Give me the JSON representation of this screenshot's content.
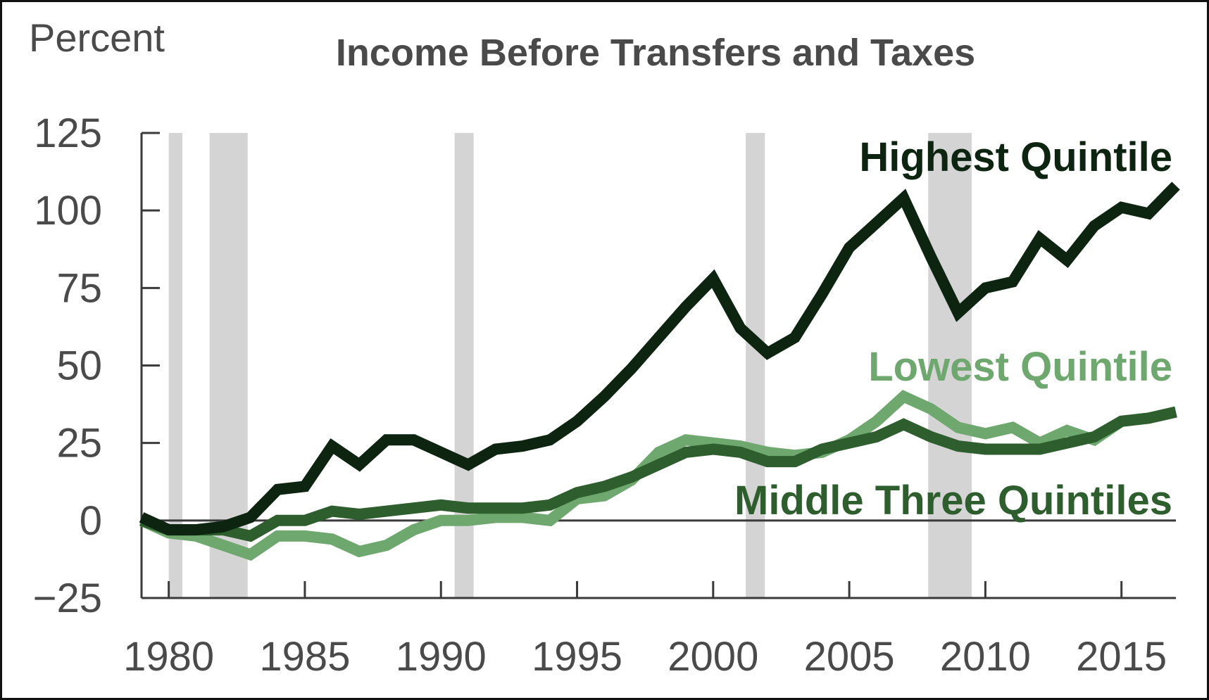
{
  "chart_data": {
    "type": "line",
    "title": "Income Before Transfers and Taxes",
    "ylabel": "Percent",
    "xlim": [
      1979,
      2017
    ],
    "ylim": [
      -25,
      125
    ],
    "yticks": [
      -25,
      0,
      25,
      50,
      75,
      100,
      125
    ],
    "yticklabels": [
      "−25",
      "0",
      "25",
      "50",
      "75",
      "100",
      "125"
    ],
    "xticks": [
      1980,
      1985,
      1990,
      1995,
      2000,
      2005,
      2010,
      2015
    ],
    "xticklabels": [
      "1980",
      "1985",
      "1990",
      "1995",
      "2000",
      "2005",
      "2010",
      "2015"
    ],
    "grid": false,
    "zero_line": true,
    "recessions": [
      [
        1980.0,
        1980.5
      ],
      [
        1981.5,
        1982.9
      ],
      [
        1990.5,
        1991.2
      ],
      [
        2001.2,
        2001.9
      ],
      [
        2007.9,
        2009.5
      ]
    ],
    "x": [
      1979,
      1980,
      1981,
      1982,
      1983,
      1984,
      1985,
      1986,
      1987,
      1988,
      1989,
      1990,
      1991,
      1992,
      1993,
      1994,
      1995,
      1996,
      1997,
      1998,
      1999,
      2000,
      2001,
      2002,
      2003,
      2004,
      2005,
      2006,
      2007,
      2008,
      2009,
      2010,
      2011,
      2012,
      2013,
      2014,
      2015,
      2016,
      2017
    ],
    "series": [
      {
        "name": "Highest Quintile",
        "color": "#0c2410",
        "values": [
          1,
          -3,
          -3,
          -2,
          1,
          10,
          11,
          24,
          18,
          26,
          26,
          22,
          18,
          23,
          24,
          26,
          32,
          40,
          49,
          59,
          69,
          78,
          62,
          54,
          59,
          73,
          88,
          96,
          104,
          85,
          67,
          75,
          77,
          91,
          84,
          95,
          101,
          99,
          108
        ]
      },
      {
        "name": "Lowest Quintile",
        "color": "#6fa86f",
        "values": [
          0,
          -4,
          -5,
          -8,
          -11,
          -5,
          -5,
          -6,
          -10,
          -8,
          -3,
          0,
          0,
          1,
          1,
          0,
          7,
          8,
          13,
          22,
          26,
          25,
          24,
          22,
          21,
          22,
          26,
          32,
          40,
          36,
          30,
          28,
          30,
          25,
          29,
          26,
          32,
          33,
          35
        ]
      },
      {
        "name": "Middle Three Quintiles",
        "color": "#2e5e2e",
        "values": [
          0,
          -3,
          -3,
          -3,
          -5,
          0,
          0,
          3,
          2,
          3,
          4,
          5,
          4,
          4,
          4,
          5,
          9,
          11,
          14,
          18,
          22,
          23,
          22,
          19,
          19,
          23,
          25,
          27,
          31,
          27,
          24,
          23,
          23,
          23,
          25,
          27,
          32,
          33,
          35
        ]
      }
    ]
  }
}
